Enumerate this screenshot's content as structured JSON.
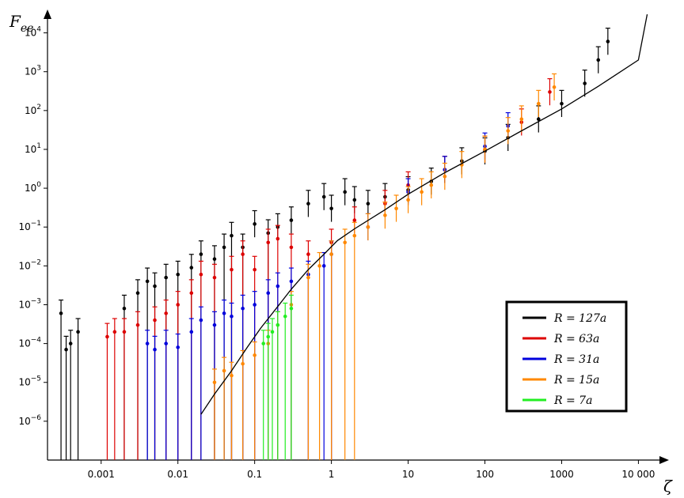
{
  "chart_data": {
    "type": "scatter",
    "title": "",
    "xlabel": "ζ",
    "ylabel": "F_ee",
    "x_scale": "log",
    "y_scale": "log",
    "xlim": [
      0.0002,
      25000
    ],
    "ylim": [
      1e-07,
      40000
    ],
    "x_ticks": [
      {
        "value": 0.001,
        "label": "0.001"
      },
      {
        "value": 0.01,
        "label": "0.01"
      },
      {
        "value": 0.1,
        "label": "0.1"
      },
      {
        "value": 1,
        "label": "1"
      },
      {
        "value": 10,
        "label": "10"
      },
      {
        "value": 100,
        "label": "100"
      },
      {
        "value": 1000,
        "label": "1000"
      },
      {
        "value": 10000,
        "label": "10 000"
      }
    ],
    "y_ticks": [
      {
        "value": 1e-06,
        "base": "10",
        "exp": "−6"
      },
      {
        "value": 1e-05,
        "base": "10",
        "exp": "−5"
      },
      {
        "value": 0.0001,
        "base": "10",
        "exp": "−4"
      },
      {
        "value": 0.001,
        "base": "10",
        "exp": "−3"
      },
      {
        "value": 0.01,
        "base": "10",
        "exp": "−2"
      },
      {
        "value": 0.1,
        "base": "10",
        "exp": "−1"
      },
      {
        "value": 1,
        "base": "10",
        "exp": "0"
      },
      {
        "value": 10,
        "base": "10",
        "exp": "1"
      },
      {
        "value": 100,
        "base": "10",
        "exp": "2"
      },
      {
        "value": 1000,
        "base": "10",
        "exp": "3"
      },
      {
        "value": 10000,
        "base": "10",
        "exp": "4"
      }
    ],
    "grid": false,
    "legend_position": "bottom-right",
    "series": [
      {
        "name": "R = 127a",
        "color": "#000000",
        "points": [
          [
            0.0003,
            0.0006
          ],
          [
            0.00035,
            7e-05
          ],
          [
            0.0004,
            0.0001
          ],
          [
            0.0005,
            0.0002
          ],
          [
            0.002,
            0.0008
          ],
          [
            0.003,
            0.002
          ],
          [
            0.004,
            0.004
          ],
          [
            0.005,
            0.003
          ],
          [
            0.007,
            0.005
          ],
          [
            0.01,
            0.006
          ],
          [
            0.015,
            0.009
          ],
          [
            0.02,
            0.02
          ],
          [
            0.03,
            0.015
          ],
          [
            0.04,
            0.03
          ],
          [
            0.05,
            0.06
          ],
          [
            0.07,
            0.03
          ],
          [
            0.1,
            0.12
          ],
          [
            0.15,
            0.07
          ],
          [
            0.2,
            0.1
          ],
          [
            0.3,
            0.15
          ],
          [
            0.5,
            0.4
          ],
          [
            0.8,
            0.6
          ],
          [
            1,
            0.3
          ],
          [
            1.5,
            0.8
          ],
          [
            2,
            0.5
          ],
          [
            3,
            0.4
          ],
          [
            5,
            0.6
          ],
          [
            10,
            0.9
          ],
          [
            20,
            1.5
          ],
          [
            30,
            3
          ],
          [
            50,
            5
          ],
          [
            100,
            9
          ],
          [
            200,
            20
          ],
          [
            500,
            60
          ],
          [
            1000,
            150
          ],
          [
            2000,
            500
          ],
          [
            3000,
            2000
          ],
          [
            4000,
            6000
          ]
        ]
      },
      {
        "name": "R = 63a",
        "color": "#dd0000",
        "points": [
          [
            0.0012,
            0.00015
          ],
          [
            0.0015,
            0.0002
          ],
          [
            0.002,
            0.0002
          ],
          [
            0.003,
            0.0003
          ],
          [
            0.005,
            0.0004
          ],
          [
            0.007,
            0.0006
          ],
          [
            0.01,
            0.001
          ],
          [
            0.015,
            0.002
          ],
          [
            0.02,
            0.006
          ],
          [
            0.03,
            0.005
          ],
          [
            0.05,
            0.008
          ],
          [
            0.07,
            0.02
          ],
          [
            0.1,
            0.008
          ],
          [
            0.15,
            0.04
          ],
          [
            0.2,
            0.05
          ],
          [
            0.3,
            0.03
          ],
          [
            0.5,
            0.02
          ],
          [
            1,
            0.04
          ],
          [
            2,
            0.15
          ],
          [
            5,
            0.4
          ],
          [
            10,
            1.2
          ],
          [
            30,
            3
          ],
          [
            100,
            10
          ],
          [
            300,
            50
          ],
          [
            700,
            300
          ]
        ]
      },
      {
        "name": "R = 31a",
        "color": "#0000dd",
        "points": [
          [
            0.004,
            0.0001
          ],
          [
            0.005,
            7e-05
          ],
          [
            0.007,
            0.0001
          ],
          [
            0.01,
            8e-05
          ],
          [
            0.015,
            0.0002
          ],
          [
            0.02,
            0.0004
          ],
          [
            0.03,
            0.0003
          ],
          [
            0.04,
            0.0006
          ],
          [
            0.05,
            0.0005
          ],
          [
            0.07,
            0.0008
          ],
          [
            0.1,
            0.001
          ],
          [
            0.15,
            0.002
          ],
          [
            0.2,
            0.003
          ],
          [
            0.3,
            0.004
          ],
          [
            0.5,
            0.006
          ],
          [
            0.8,
            0.01
          ],
          [
            1,
            0.02
          ],
          [
            3,
            0.1
          ],
          [
            10,
            0.8
          ],
          [
            30,
            3
          ],
          [
            100,
            12
          ],
          [
            200,
            40
          ]
        ]
      },
      {
        "name": "R = 15a",
        "color": "#ff8800",
        "points": [
          [
            0.03,
            1e-05
          ],
          [
            0.04,
            2e-05
          ],
          [
            0.05,
            1.5e-05
          ],
          [
            0.07,
            3e-05
          ],
          [
            0.1,
            5e-05
          ],
          [
            0.15,
            0.0001
          ],
          [
            0.2,
            0.0003
          ],
          [
            0.3,
            0.001
          ],
          [
            0.5,
            0.005
          ],
          [
            0.7,
            0.01
          ],
          [
            1,
            0.02
          ],
          [
            1.5,
            0.04
          ],
          [
            2,
            0.06
          ],
          [
            3,
            0.1
          ],
          [
            5,
            0.2
          ],
          [
            7,
            0.3
          ],
          [
            10,
            0.5
          ],
          [
            15,
            0.8
          ],
          [
            20,
            1.2
          ],
          [
            30,
            2
          ],
          [
            50,
            4
          ],
          [
            100,
            10
          ],
          [
            200,
            30
          ],
          [
            300,
            60
          ],
          [
            500,
            150
          ],
          [
            800,
            400
          ]
        ]
      },
      {
        "name": "R = 7a",
        "color": "#22ee22",
        "points": [
          [
            0.13,
            0.0001
          ],
          [
            0.15,
            0.00015
          ],
          [
            0.17,
            0.0002
          ],
          [
            0.2,
            0.0003
          ],
          [
            0.25,
            0.0005
          ],
          [
            0.3,
            0.0008
          ]
        ]
      }
    ],
    "fit_curve": {
      "color": "#000000",
      "points": [
        [
          0.02,
          1.5e-06
        ],
        [
          0.03,
          5e-06
        ],
        [
          0.05,
          2e-05
        ],
        [
          0.08,
          8e-05
        ],
        [
          0.12,
          0.00025
        ],
        [
          0.2,
          0.0009
        ],
        [
          0.3,
          0.0025
        ],
        [
          0.5,
          0.008
        ],
        [
          0.8,
          0.02
        ],
        [
          1.2,
          0.045
        ],
        [
          2,
          0.09
        ],
        [
          5,
          0.28
        ],
        [
          10,
          0.7
        ],
        [
          30,
          2.5
        ],
        [
          100,
          9
        ],
        [
          300,
          30
        ],
        [
          1000,
          110
        ],
        [
          3000,
          420
        ],
        [
          10000,
          2000
        ],
        [
          13000,
          30000
        ]
      ]
    }
  }
}
